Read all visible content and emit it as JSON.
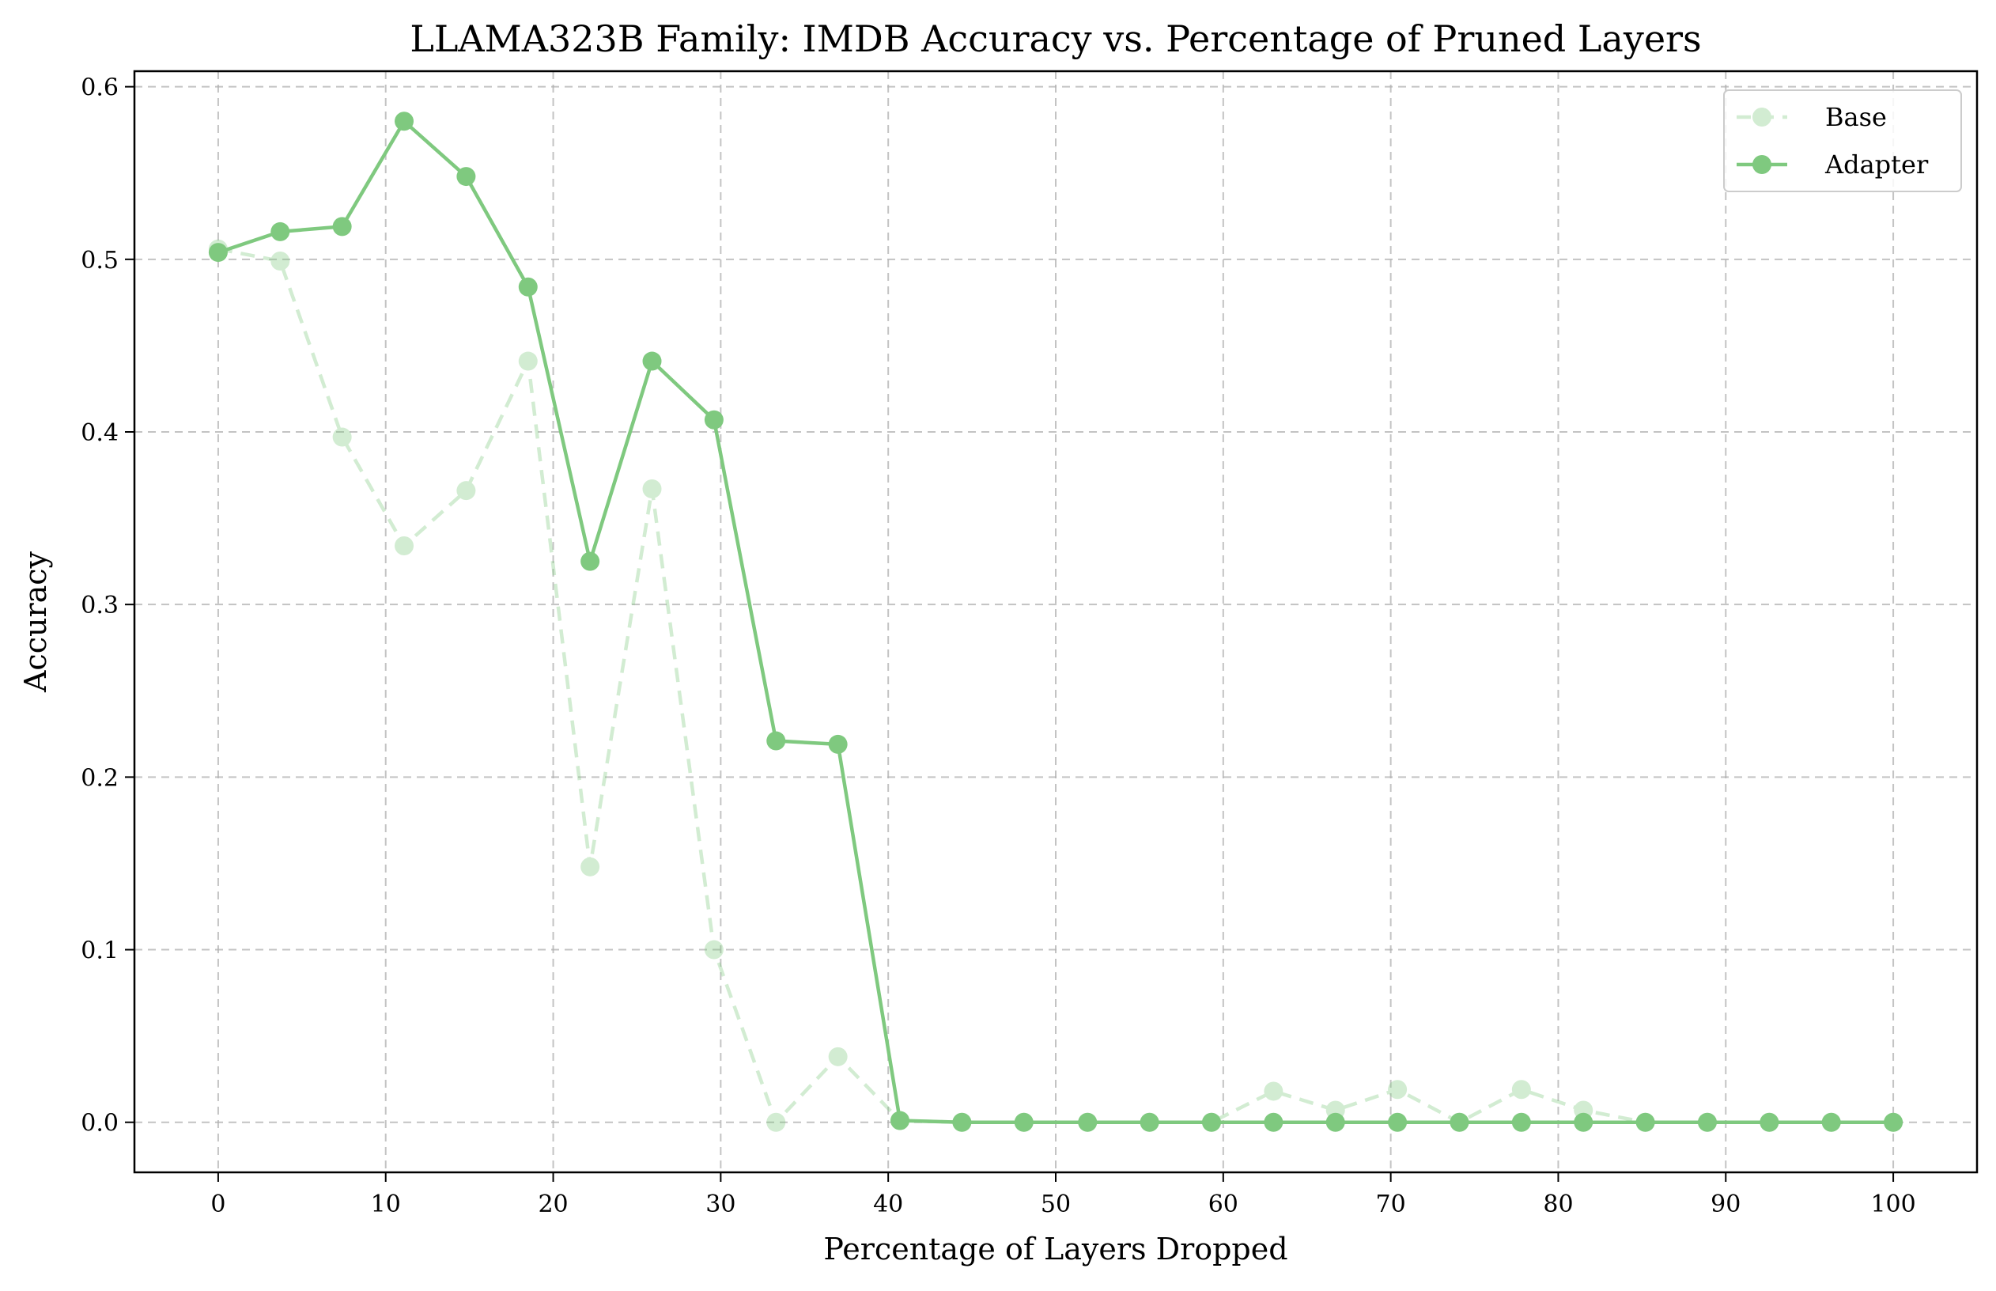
{
  "chart_data": {
    "type": "line",
    "title": "LLAMA323B Family: IMDB Accuracy vs. Percentage of Pruned Layers",
    "xlabel": "Percentage of Layers Dropped",
    "ylabel": "Accuracy",
    "xlim": [
      -5,
      105
    ],
    "ylim": [
      -0.029,
      0.609
    ],
    "xticks": [
      0,
      10,
      20,
      30,
      40,
      50,
      60,
      70,
      80,
      90,
      100
    ],
    "xtick_labels": [
      "0",
      "10",
      "20",
      "30",
      "40",
      "50",
      "60",
      "70",
      "80",
      "90",
      "100"
    ],
    "yticks": [
      0.0,
      0.1,
      0.2,
      0.3,
      0.4,
      0.5,
      0.6
    ],
    "ytick_labels": [
      "0.0",
      "0.1",
      "0.2",
      "0.3",
      "0.4",
      "0.5",
      "0.6"
    ],
    "grid": true,
    "legend_position": "top-right",
    "x": [
      0,
      3.7,
      7.4,
      11.1,
      14.8,
      18.5,
      22.2,
      25.9,
      29.6,
      33.3,
      37.0,
      40.7,
      44.4,
      48.1,
      51.9,
      55.6,
      59.3,
      63.0,
      66.7,
      70.4,
      74.1,
      77.8,
      81.5,
      85.2,
      88.9,
      92.6,
      96.3,
      100
    ],
    "series": [
      {
        "name": "Base",
        "color": "#7fc97f",
        "style": "dashed",
        "values": [
          0.506,
          0.499,
          0.397,
          0.334,
          0.366,
          0.441,
          0.148,
          0.367,
          0.1,
          0.0,
          0.038,
          0.001,
          0.0,
          0.0,
          0.0,
          0.0,
          0.0,
          0.018,
          0.007,
          0.019,
          0.0,
          0.019,
          0.007,
          0.0,
          0.0,
          0.0,
          0.0,
          0.0
        ]
      },
      {
        "name": "Adapter",
        "color": "#7fc97f",
        "style": "solid",
        "values": [
          0.504,
          0.516,
          0.519,
          0.58,
          0.548,
          0.484,
          0.325,
          0.441,
          0.407,
          0.221,
          0.219,
          0.001,
          0.0,
          0.0,
          0.0,
          0.0,
          0.0,
          0.0,
          0.0,
          0.0,
          0.0,
          0.0,
          0.0,
          0.0,
          0.0,
          0.0,
          0.0,
          0.0
        ]
      }
    ]
  }
}
